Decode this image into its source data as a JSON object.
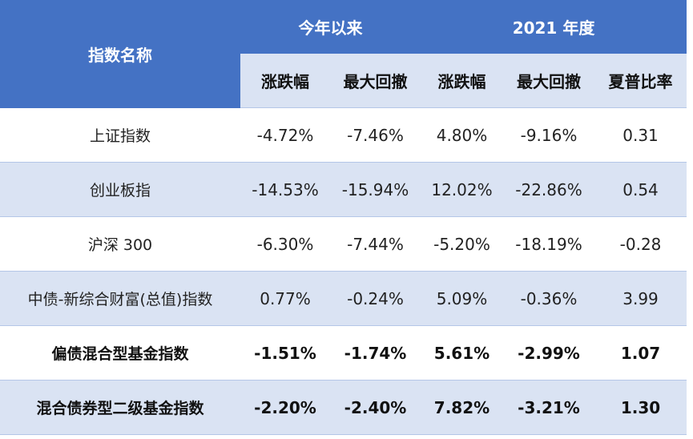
{
  "table": {
    "header": {
      "name_column": "指数名称",
      "groups": [
        {
          "label": "今年以来",
          "columns": [
            "涨跌幅",
            "最大回撤"
          ]
        },
        {
          "label": "2021 年度",
          "columns": [
            "涨跌幅",
            "最大回撤",
            "夏普比率"
          ]
        }
      ]
    },
    "rows": [
      [
        "上证指数",
        "-4.72%",
        "-7.46%",
        "4.80%",
        "-9.16%",
        "0.31"
      ],
      [
        "创业板指",
        "-14.53%",
        "-15.94%",
        "12.02%",
        "-22.86%",
        "0.54"
      ],
      [
        "沪深 300",
        "-6.30%",
        "-7.44%",
        "-5.20%",
        "-18.19%",
        "-0.28"
      ],
      [
        "中债-新综合财富(总值)指数",
        "0.77%",
        "-0.24%",
        "5.09%",
        "-0.36%",
        "3.99"
      ],
      [
        "偏债混合型基金指数",
        "-1.51%",
        "-1.74%",
        "5.61%",
        "-2.99%",
        "1.07"
      ],
      [
        "混合债券型二级基金指数",
        "-2.20%",
        "-2.40%",
        "7.82%",
        "-3.21%",
        "1.30"
      ]
    ]
  }
}
